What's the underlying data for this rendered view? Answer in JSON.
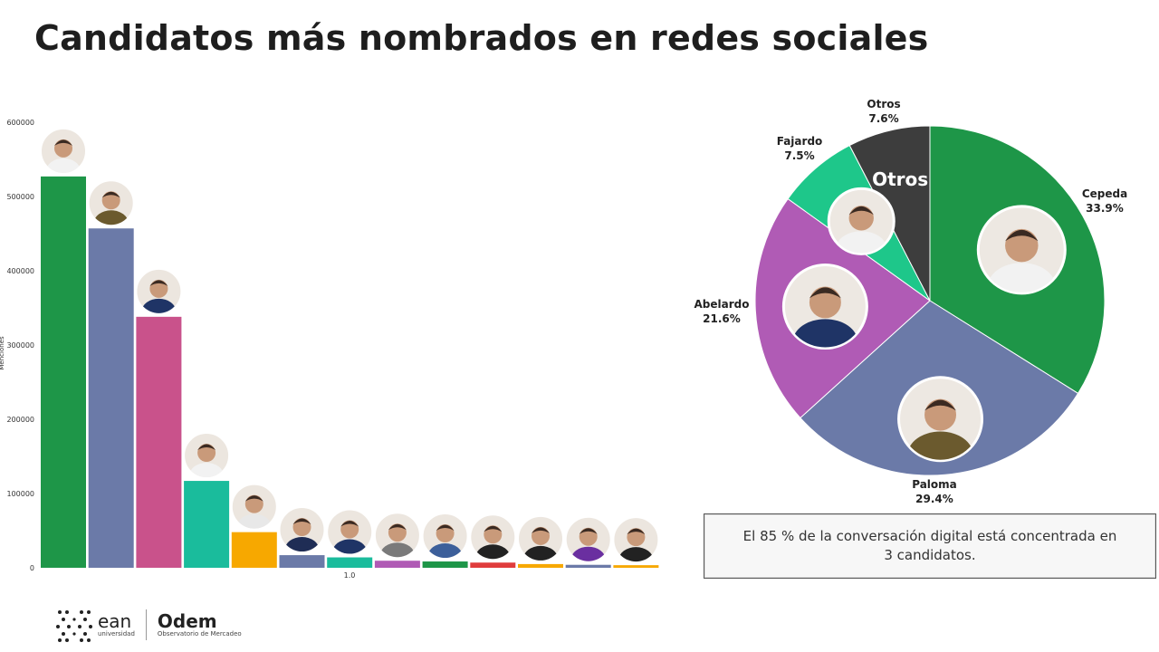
{
  "title": "Candidatos más nombrados en redes sociales",
  "chart_data": [
    {
      "type": "bar",
      "ylabel": "Menciones",
      "ylim": [
        0,
        600000
      ],
      "yticks": [
        0,
        100000,
        200000,
        300000,
        400000,
        500000,
        600000
      ],
      "x_tick_label": "1.0",
      "grid": false,
      "legend": "none",
      "values": [
        527000,
        457000,
        338000,
        117000,
        48000,
        17000,
        14000,
        9500,
        8500,
        7000,
        5000,
        4000,
        3500
      ],
      "colors": [
        "#1e9648",
        "#6b7aa8",
        "#c9528b",
        "#1abc9c",
        "#f7a800",
        "#6b7aa8",
        "#1abc9c",
        "#b05bb5",
        "#1e9648",
        "#e03c3c",
        "#f7a800",
        "#6b7aa8",
        "#f7a800"
      ]
    },
    {
      "type": "pie",
      "slices": [
        {
          "label": "Cepeda",
          "pct": "33.9%",
          "value": 33.9,
          "color": "#1e9648"
        },
        {
          "label": "Paloma",
          "pct": "29.4%",
          "value": 29.4,
          "color": "#6b7aa8"
        },
        {
          "label": "Abelardo",
          "pct": "21.6%",
          "value": 21.6,
          "color": "#b05bb5"
        },
        {
          "label": "Fajardo",
          "pct": "7.5%",
          "value": 7.5,
          "color": "#1ec78a"
        },
        {
          "label": "Otros",
          "pct": "7.6%",
          "value": 7.6,
          "color": "#3d3d3d"
        }
      ],
      "inner_label": "Otros"
    }
  ],
  "note": "El 85 % de la conversación digital está concentrada en 3 candidatos.",
  "logos": {
    "ean_name": "ean",
    "ean_sub": "universidad",
    "odem_name": "Odem",
    "odem_sub": "Observatorio de Mercadeo"
  }
}
